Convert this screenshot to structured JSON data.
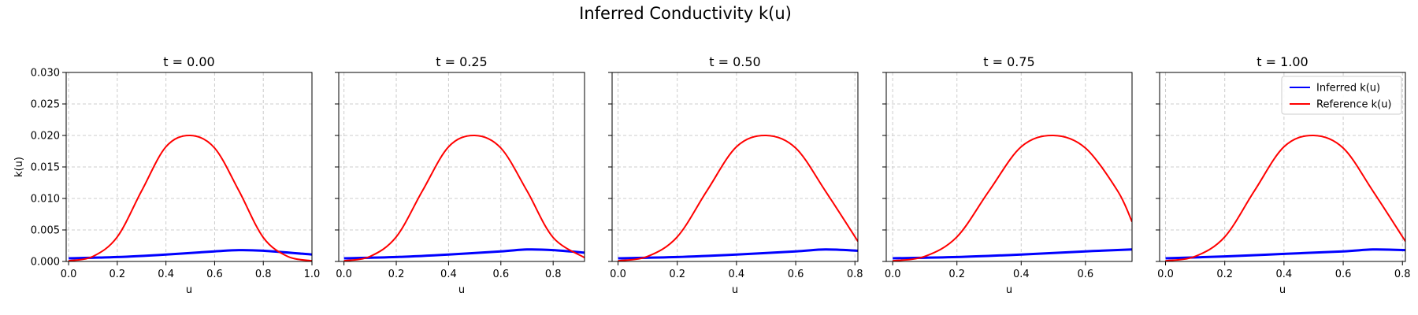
{
  "figure": {
    "title": "Inferred Conductivity k(u)"
  },
  "colors": {
    "inferred": "#0000ff",
    "reference": "#ff0000",
    "grid": "#cccccc"
  },
  "legend": {
    "placement": "top-right",
    "items": [
      "Inferred k(u)",
      "Reference k(u)"
    ]
  },
  "chart_data": [
    {
      "type": "line",
      "title": "t = 0.00",
      "xlabel": "u",
      "ylabel": "k(u)",
      "xlim": [
        -0.01,
        1.0
      ],
      "ylim": [
        0,
        0.03
      ],
      "xticks": [
        "0.0",
        "0.2",
        "0.4",
        "0.6",
        "0.8",
        "1.0"
      ],
      "yticks": [
        "0.000",
        "0.005",
        "0.010",
        "0.015",
        "0.020",
        "0.025",
        "0.030"
      ],
      "grid": true,
      "legend": false,
      "series": [
        {
          "name": "Inferred k(u)",
          "x": [
            0.0,
            0.2,
            0.4,
            0.6,
            0.7,
            0.8,
            1.0
          ],
          "y": [
            0.0005,
            0.0007,
            0.0011,
            0.0016,
            0.0018,
            0.0017,
            0.0011
          ]
        },
        {
          "name": "Reference k(u)",
          "x": [
            0.0,
            0.1,
            0.2,
            0.3,
            0.4,
            0.5,
            0.6,
            0.7,
            0.8,
            0.9,
            1.0
          ],
          "y": [
            0.0001,
            0.0008,
            0.0039,
            0.0112,
            0.0182,
            0.02,
            0.018,
            0.0112,
            0.0038,
            0.0008,
            0.0001
          ]
        }
      ]
    },
    {
      "type": "line",
      "title": "t = 0.25",
      "xlabel": "u",
      "ylabel": "",
      "xlim": [
        -0.02,
        0.92
      ],
      "ylim": [
        0,
        0.03
      ],
      "xticks": [
        "0.0",
        "0.2",
        "0.4",
        "0.6",
        "0.8"
      ],
      "yticks": [],
      "grid": true,
      "legend": false,
      "series": [
        {
          "name": "Inferred k(u)",
          "x": [
            0.0,
            0.2,
            0.4,
            0.6,
            0.7,
            0.8,
            0.92
          ],
          "y": [
            0.0005,
            0.0007,
            0.0011,
            0.0016,
            0.0019,
            0.0018,
            0.0014
          ]
        },
        {
          "name": "Reference k(u)",
          "x": [
            0.0,
            0.1,
            0.2,
            0.3,
            0.4,
            0.5,
            0.6,
            0.7,
            0.8,
            0.92
          ],
          "y": [
            0.0001,
            0.0008,
            0.0039,
            0.0112,
            0.0182,
            0.02,
            0.018,
            0.0112,
            0.0038,
            0.0006
          ]
        }
      ]
    },
    {
      "type": "line",
      "title": "t = 0.50",
      "xlabel": "u",
      "ylabel": "",
      "xlim": [
        -0.02,
        0.81
      ],
      "ylim": [
        0,
        0.03
      ],
      "xticks": [
        "0.0",
        "0.2",
        "0.4",
        "0.6",
        "0.8"
      ],
      "yticks": [],
      "grid": true,
      "legend": false,
      "series": [
        {
          "name": "Inferred k(u)",
          "x": [
            0.0,
            0.2,
            0.4,
            0.6,
            0.7,
            0.81
          ],
          "y": [
            0.0005,
            0.0007,
            0.0011,
            0.0016,
            0.0019,
            0.0017
          ]
        },
        {
          "name": "Reference k(u)",
          "x": [
            0.0,
            0.1,
            0.2,
            0.3,
            0.4,
            0.5,
            0.6,
            0.7,
            0.81
          ],
          "y": [
            0.0001,
            0.0008,
            0.0039,
            0.0112,
            0.0182,
            0.02,
            0.018,
            0.0112,
            0.0032
          ]
        }
      ]
    },
    {
      "type": "line",
      "title": "t = 0.75",
      "xlabel": "u",
      "ylabel": "",
      "xlim": [
        -0.02,
        0.745
      ],
      "ylim": [
        0,
        0.03
      ],
      "xticks": [
        "0.0",
        "0.2",
        "0.4",
        "0.6"
      ],
      "yticks": [],
      "grid": true,
      "legend": false,
      "series": [
        {
          "name": "Inferred k(u)",
          "x": [
            0.0,
            0.2,
            0.4,
            0.6,
            0.745
          ],
          "y": [
            0.0005,
            0.0007,
            0.0011,
            0.0016,
            0.0019
          ]
        },
        {
          "name": "Reference k(u)",
          "x": [
            0.0,
            0.1,
            0.2,
            0.3,
            0.4,
            0.5,
            0.6,
            0.7,
            0.745
          ],
          "y": [
            0.0001,
            0.0008,
            0.0039,
            0.0112,
            0.0182,
            0.02,
            0.018,
            0.0112,
            0.0063
          ]
        }
      ]
    },
    {
      "type": "line",
      "title": "t = 1.00",
      "xlabel": "u",
      "ylabel": "",
      "xlim": [
        -0.02,
        0.81
      ],
      "ylim": [
        0,
        0.03
      ],
      "xticks": [
        "0.0",
        "0.2",
        "0.4",
        "0.6",
        "0.8"
      ],
      "yticks": [],
      "grid": true,
      "legend": true,
      "series": [
        {
          "name": "Inferred k(u)",
          "x": [
            0.0,
            0.2,
            0.4,
            0.6,
            0.7,
            0.81
          ],
          "y": [
            0.0005,
            0.0008,
            0.0012,
            0.0016,
            0.0019,
            0.0018
          ]
        },
        {
          "name": "Reference k(u)",
          "x": [
            0.0,
            0.1,
            0.2,
            0.3,
            0.4,
            0.5,
            0.6,
            0.7,
            0.81
          ],
          "y": [
            0.0001,
            0.0008,
            0.0039,
            0.0112,
            0.0182,
            0.02,
            0.018,
            0.0112,
            0.0032
          ]
        }
      ]
    }
  ]
}
